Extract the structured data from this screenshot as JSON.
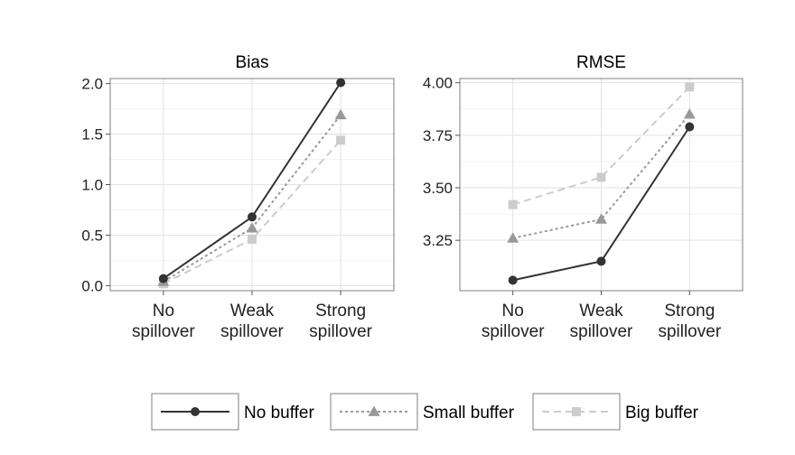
{
  "chart_data": [
    {
      "type": "line",
      "title": "Bias",
      "xlabel": "",
      "ylabel": "",
      "categories": [
        "No spillover",
        "Weak spillover",
        "Strong spillover"
      ],
      "ylim": [
        -0.05,
        2.05
      ],
      "yticks": [
        0.0,
        0.5,
        1.0,
        1.5,
        2.0
      ],
      "ytick_labels": [
        "0.0",
        "0.5",
        "1.0",
        "1.5",
        "2.0"
      ],
      "grid": true,
      "series": [
        {
          "name": "No buffer",
          "values": [
            0.07,
            0.68,
            2.01
          ]
        },
        {
          "name": "Small buffer",
          "values": [
            0.04,
            0.57,
            1.69
          ]
        },
        {
          "name": "Big buffer",
          "values": [
            0.02,
            0.46,
            1.44
          ]
        }
      ]
    },
    {
      "type": "line",
      "title": "RMSE",
      "xlabel": "",
      "ylabel": "",
      "categories": [
        "No spillover",
        "Weak spillover",
        "Strong spillover"
      ],
      "ylim": [
        3.01,
        4.02
      ],
      "yticks": [
        3.25,
        3.5,
        3.75,
        4.0
      ],
      "ytick_labels": [
        "3.25",
        "3.50",
        "3.75",
        "4.00"
      ],
      "grid": true,
      "series": [
        {
          "name": "No buffer",
          "values": [
            3.06,
            3.15,
            3.79
          ]
        },
        {
          "name": "Small buffer",
          "values": [
            3.26,
            3.35,
            3.85
          ]
        },
        {
          "name": "Big buffer",
          "values": [
            3.42,
            3.55,
            3.98
          ]
        }
      ]
    }
  ],
  "legend": {
    "position": "bottom",
    "items": [
      {
        "label": "No buffer",
        "color": "#333333",
        "marker": "circle",
        "line": "solid"
      },
      {
        "label": "Small buffer",
        "color": "#999999",
        "marker": "triangle",
        "line": "dotted"
      },
      {
        "label": "Big buffer",
        "color": "#cccccc",
        "marker": "square",
        "line": "dashed"
      }
    ]
  }
}
